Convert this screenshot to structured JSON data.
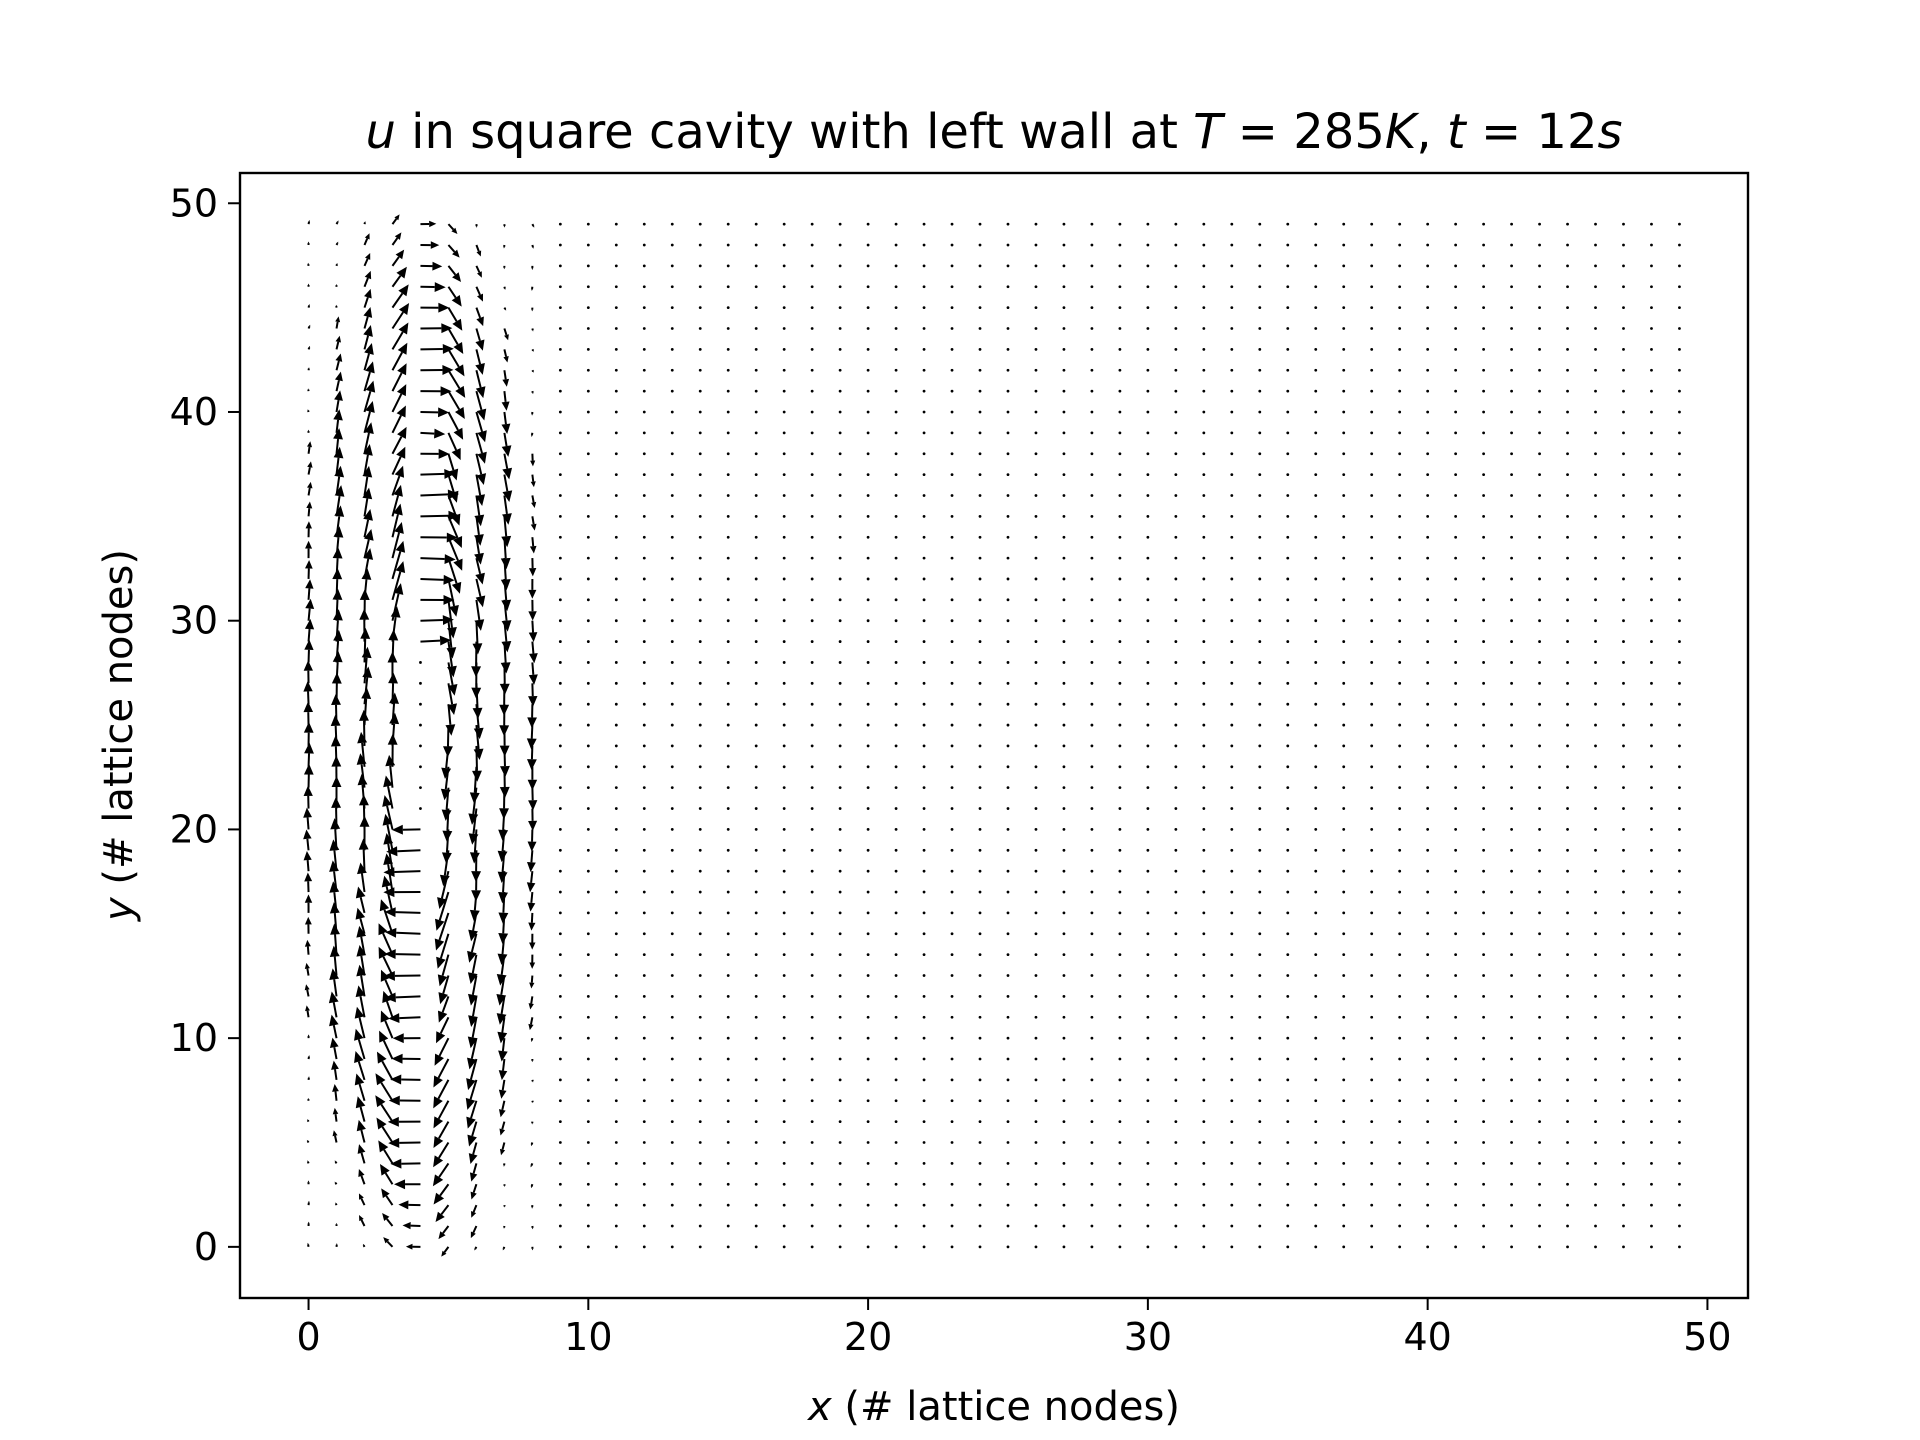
{
  "chart_data": {
    "type": "quiver",
    "title": {
      "parts": [
        {
          "text": "u",
          "italic": true
        },
        {
          "text": " in square cavity with left wall at ",
          "italic": false
        },
        {
          "text": "T",
          "italic": true
        },
        {
          "text": " = 285",
          "italic": false
        },
        {
          "text": "K",
          "italic": true
        },
        {
          "text": ", ",
          "italic": false
        },
        {
          "text": "t",
          "italic": true
        },
        {
          "text": " = 12",
          "italic": false
        },
        {
          "text": "s",
          "italic": true
        }
      ]
    },
    "xlabel": {
      "var": "x",
      "rest": " (# lattice nodes)"
    },
    "ylabel": {
      "var": "y",
      "rest": " (# lattice nodes)"
    },
    "xlim": [
      -2.45,
      51.45
    ],
    "ylim": [
      -2.45,
      51.45
    ],
    "xticks": [
      0,
      10,
      20,
      30,
      40,
      50
    ],
    "yticks": [
      0,
      10,
      20,
      30,
      40,
      50
    ],
    "xtick_labels": [
      "0",
      "10",
      "20",
      "30",
      "40",
      "50"
    ],
    "ytick_labels": [
      "0",
      "10",
      "20",
      "30",
      "40",
      "50"
    ],
    "grid": {
      "nx": 50,
      "ny": 50,
      "x_start": 0,
      "y_start": 0,
      "spacing": 1
    },
    "vortex": {
      "x_min": 0,
      "x_max": 8,
      "y_min": 0,
      "y_max": 49,
      "rotation": "clockwise",
      "max_speed_units": 1.4
    },
    "grid_on": false,
    "color": "#000000"
  }
}
